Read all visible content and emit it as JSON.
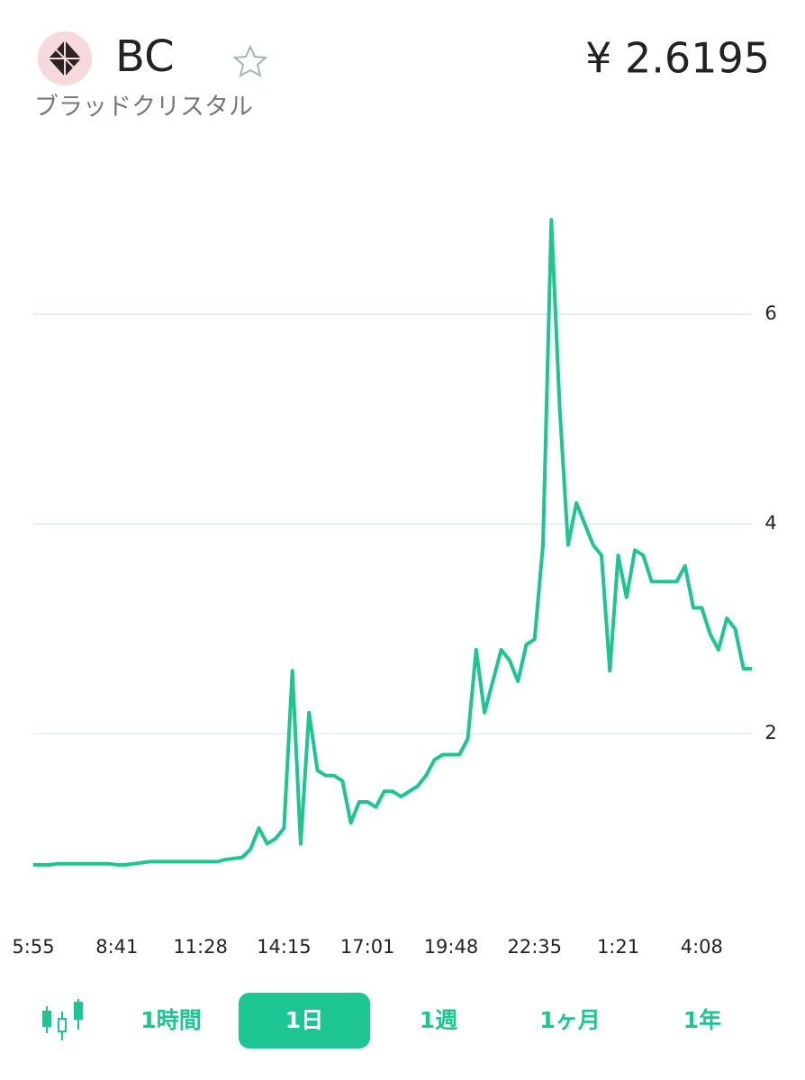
{
  "header": {
    "symbol": "BC",
    "name": "ブラッドクリスタル",
    "price": "¥ 2.6195"
  },
  "chart_data": {
    "type": "line",
    "color": "#1dc592",
    "categories": [
      "5:55",
      null,
      null,
      null,
      null,
      null,
      null,
      null,
      null,
      null,
      "8:41",
      null,
      null,
      null,
      null,
      null,
      null,
      null,
      null,
      null,
      "11:28",
      null,
      null,
      null,
      null,
      null,
      null,
      null,
      null,
      null,
      "14:15",
      null,
      null,
      null,
      null,
      null,
      null,
      null,
      null,
      null,
      "17:01",
      null,
      null,
      null,
      null,
      null,
      null,
      null,
      null,
      null,
      "19:48",
      null,
      null,
      null,
      null,
      null,
      null,
      null,
      null,
      null,
      "22:35",
      null,
      null,
      null,
      null,
      null,
      null,
      null,
      null,
      null,
      "1:21",
      null,
      null,
      null,
      null,
      null,
      null,
      null,
      null,
      null,
      "4:08",
      null,
      null,
      null,
      null,
      null,
      null
    ],
    "values": [
      0.75,
      0.75,
      0.75,
      0.76,
      0.76,
      0.76,
      0.76,
      0.76,
      0.76,
      0.76,
      0.75,
      0.75,
      0.76,
      0.77,
      0.78,
      0.78,
      0.78,
      0.78,
      0.78,
      0.78,
      0.78,
      0.78,
      0.78,
      0.8,
      0.81,
      0.82,
      0.9,
      1.1,
      0.95,
      1.0,
      1.1,
      2.6,
      0.95,
      2.2,
      1.65,
      1.6,
      1.6,
      1.55,
      1.15,
      1.35,
      1.35,
      1.3,
      1.45,
      1.45,
      1.4,
      1.45,
      1.5,
      1.6,
      1.75,
      1.8,
      1.8,
      1.8,
      1.95,
      2.8,
      2.2,
      2.5,
      2.8,
      2.7,
      2.5,
      2.85,
      2.9,
      3.8,
      6.9,
      5.1,
      3.8,
      4.2,
      4.0,
      3.8,
      3.7,
      2.6,
      3.7,
      3.3,
      3.75,
      3.7,
      3.45,
      3.45,
      3.45,
      3.45,
      3.6,
      3.2,
      3.2,
      2.95,
      2.8,
      3.1,
      3.0,
      2.62,
      2.62
    ],
    "ylim": [
      0.5,
      7.4
    ],
    "yticks": [
      2,
      4,
      6
    ],
    "grid": true
  },
  "tabs": [
    "1時間",
    "1日",
    "1週",
    "1ヶ月",
    "1年"
  ],
  "selected_tab": 1
}
